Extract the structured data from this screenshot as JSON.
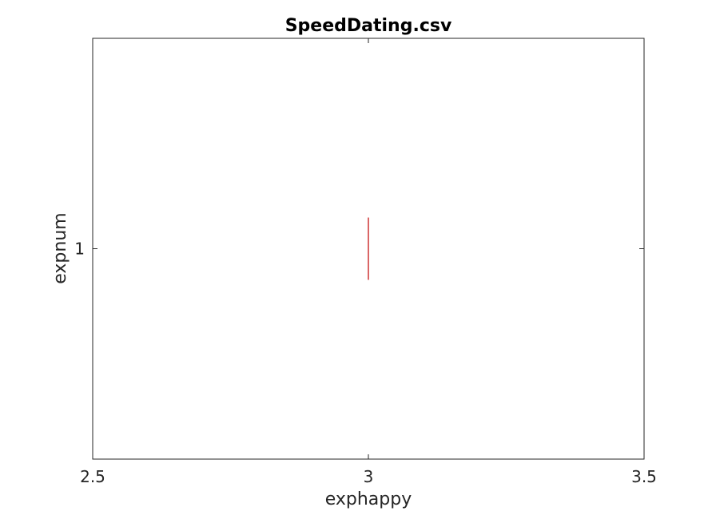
{
  "chart_data": {
    "type": "box",
    "orientation": "horizontal",
    "title": "SpeedDating.csv",
    "xlabel": "exphappy",
    "ylabel": "expnum",
    "xlim": [
      2.5,
      3.5
    ],
    "xticks": [
      "2.5",
      "3",
      "3.5"
    ],
    "yticks": [
      "1"
    ],
    "categories": [
      "1"
    ],
    "series": [
      {
        "values": [
          {
            "category": "1",
            "min": 3,
            "q1": 3,
            "median": 3,
            "q3": 3,
            "max": 3
          }
        ]
      }
    ],
    "median_color": "#c00000",
    "box_color": "#0000ff",
    "axis_color": "#262626",
    "grid": false,
    "legend": "none"
  }
}
